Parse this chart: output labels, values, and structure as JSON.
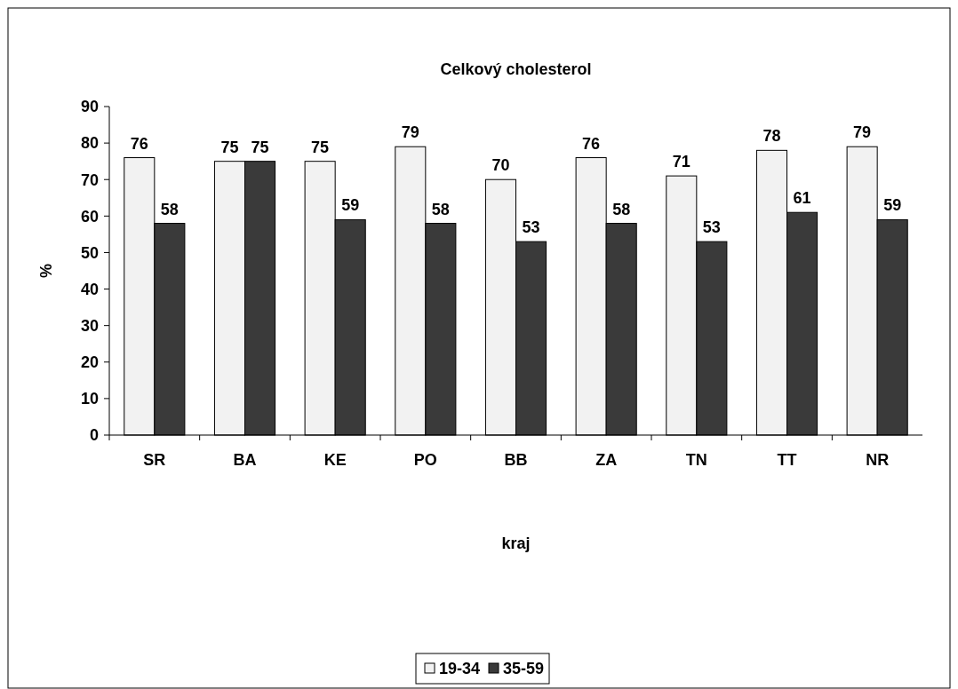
{
  "chart_data": {
    "type": "bar",
    "title": "Celkový cholesterol",
    "xlabel": "kraj",
    "ylabel": "%",
    "categories": [
      "SR",
      "BA",
      "KE",
      "PO",
      "BB",
      "ZA",
      "TN",
      "TT",
      "NR"
    ],
    "series": [
      {
        "name": "19-34",
        "color": "#f2f2f2",
        "values": [
          76,
          75,
          75,
          79,
          70,
          76,
          71,
          78,
          79
        ]
      },
      {
        "name": "35-59",
        "color": "#3a3a3a",
        "values": [
          58,
          75,
          59,
          58,
          53,
          58,
          53,
          61,
          59
        ]
      }
    ],
    "ylim": [
      0,
      90
    ],
    "yticks": [
      0,
      10,
      20,
      30,
      40,
      50,
      60,
      70,
      80,
      90
    ],
    "grid": false,
    "legend": "bottom",
    "data_labels": true
  }
}
